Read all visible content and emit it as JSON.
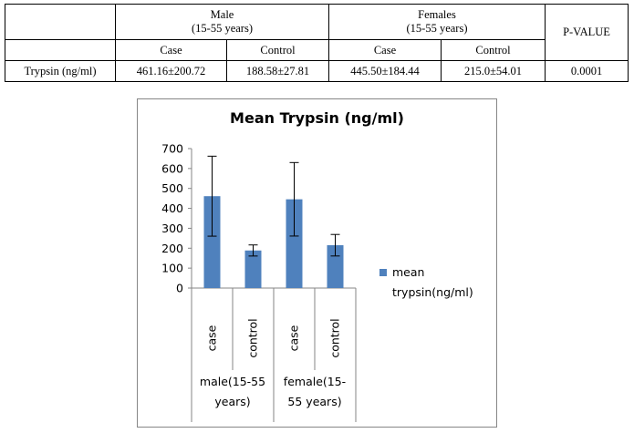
{
  "table": {
    "group_male": [
      "Male",
      "(15-55 years)"
    ],
    "group_female": [
      "Females",
      "(15-55 years)"
    ],
    "pvalue_header": "P-VALUE",
    "sub_headers": [
      "Case",
      "Control",
      "Case",
      "Control"
    ],
    "row_label": "Trypsin (ng/ml)",
    "row_values": [
      "461.16±200.72",
      "188.58±27.81",
      "445.50±184.44",
      "215.0±54.01",
      "0.0001"
    ]
  },
  "chart_data": {
    "type": "bar",
    "title": "Mean Trypsin (ng/ml)",
    "categories": [
      "case",
      "control",
      "case",
      "control"
    ],
    "groups": [
      {
        "label": "male(15-55 years)",
        "lines": [
          "male(15-55",
          "years)"
        ]
      },
      {
        "label": "female(15-55 years)",
        "lines": [
          "female(15-",
          "55 years)"
        ]
      }
    ],
    "series": [
      {
        "name": "mean trypsin(ng/ml)",
        "values": [
          461.16,
          188.58,
          445.5,
          215.0
        ],
        "errors": [
          200.72,
          27.81,
          184.44,
          54.01
        ]
      }
    ],
    "ylim": [
      0,
      700
    ],
    "yticks": [
      0,
      100,
      200,
      300,
      400,
      500,
      600,
      700
    ],
    "grid": false,
    "legend_position": "right",
    "legend_lines": [
      "mean",
      "trypsin(ng/ml)"
    ],
    "color": "#4f81bd"
  }
}
